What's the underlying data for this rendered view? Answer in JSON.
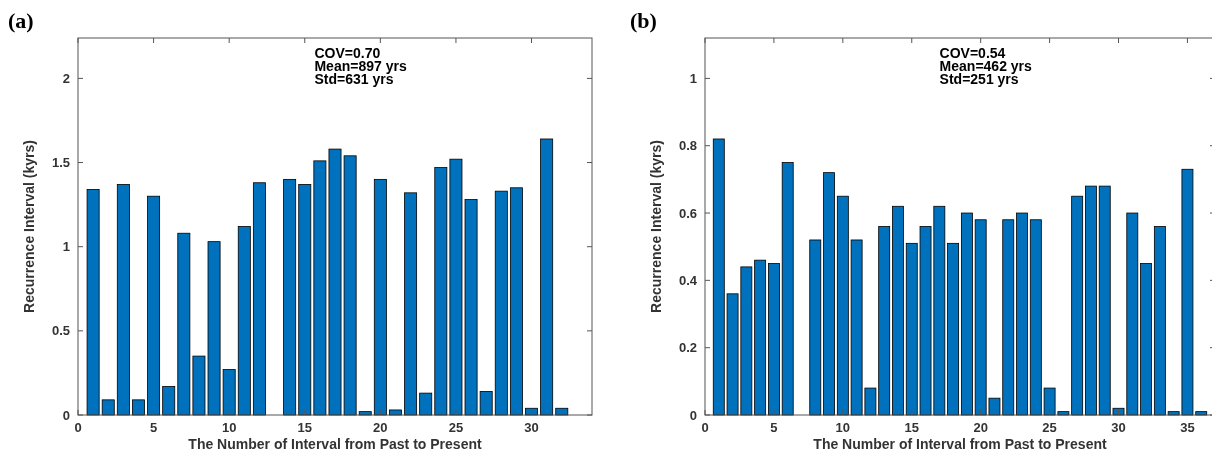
{
  "chart_data": [
    {
      "type": "bar",
      "title": "(a)",
      "xlabel": "The Number of Interval from Past to Present",
      "ylabel": "Recurrence Interval (kyrs)",
      "annotations": [
        "COV=0.70",
        "Mean=897 yrs",
        "Std=631 yrs"
      ],
      "x": [
        1,
        2,
        3,
        4,
        5,
        6,
        7,
        8,
        9,
        10,
        11,
        12,
        13,
        14,
        15,
        16,
        17,
        18,
        19,
        20,
        21,
        22,
        23,
        24,
        25,
        26,
        27,
        28,
        29,
        30,
        31,
        32
      ],
      "series": [
        {
          "color": "#0072bd",
          "values": [
            1.34,
            0.09,
            1.37,
            0.09,
            1.3,
            0.17,
            1.08,
            0.35,
            1.03,
            0.27,
            1.12,
            1.38,
            0,
            1.4,
            1.37,
            1.51,
            1.58,
            1.54,
            0.02,
            1.4,
            0.03,
            1.32,
            0.13,
            1.47,
            1.52,
            1.28,
            0.14,
            1.33,
            1.35,
            0.04,
            1.64,
            0.04
          ]
        }
      ],
      "xlim": [
        0,
        34
      ],
      "xticks": [
        0,
        5,
        10,
        15,
        20,
        25,
        30
      ],
      "ylim": [
        0,
        2.24
      ],
      "yticks": [
        0,
        0.5,
        1,
        1.5,
        2
      ],
      "grid": false
    },
    {
      "type": "bar",
      "title": "(b)",
      "xlabel": "The Number of Interval from Past to Present",
      "ylabel": "Recurrence Interval (kyrs)",
      "annotations": [
        "COV=0.54",
        "Mean=462 yrs",
        "Std=251 yrs"
      ],
      "x": [
        1,
        2,
        3,
        4,
        5,
        6,
        7,
        8,
        9,
        10,
        11,
        12,
        13,
        14,
        15,
        16,
        17,
        18,
        19,
        20,
        21,
        22,
        23,
        24,
        25,
        26,
        27,
        28,
        29,
        30,
        31,
        32,
        33,
        34,
        35,
        36
      ],
      "series": [
        {
          "color": "#0072bd",
          "values": [
            0.82,
            0.36,
            0.44,
            0.46,
            0.45,
            0.75,
            0,
            0.52,
            0.72,
            0.65,
            0.52,
            0.08,
            0.56,
            0.62,
            0.51,
            0.56,
            0.62,
            0.51,
            0.6,
            0.58,
            0.05,
            0.58,
            0.6,
            0.58,
            0.08,
            0.01,
            0.65,
            0.68,
            0.68,
            0.02,
            0.6,
            0.45,
            0.56,
            0.01,
            0.73,
            0.01
          ]
        }
      ],
      "xlim": [
        0,
        37
      ],
      "xticks": [
        0,
        5,
        10,
        15,
        20,
        25,
        30,
        35
      ],
      "ylim": [
        0,
        1.12
      ],
      "yticks": [
        0,
        0.2,
        0.4,
        0.6,
        0.8,
        1
      ],
      "grid": false
    }
  ]
}
